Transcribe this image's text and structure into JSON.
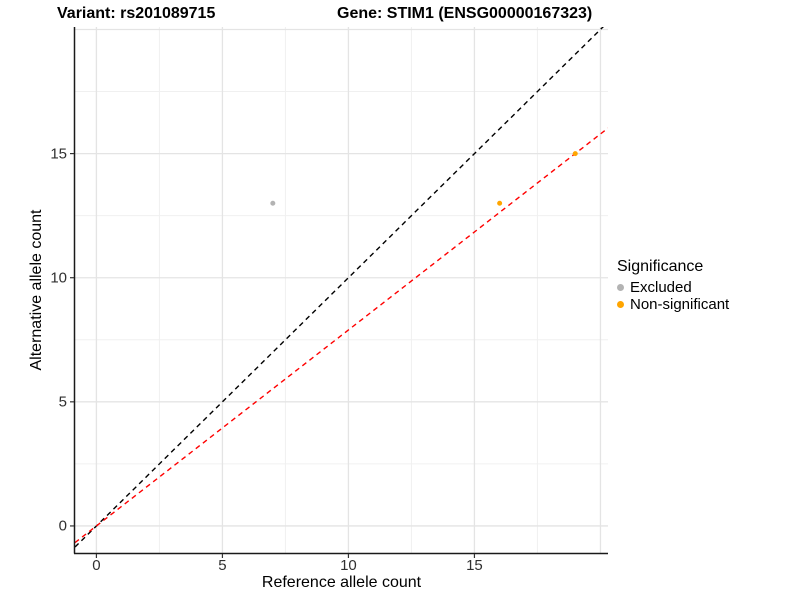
{
  "titles": {
    "variant": "Variant: rs201089715",
    "gene": "Gene: STIM1 (ENSG00000167323)"
  },
  "chart_data": {
    "type": "scatter",
    "xlabel": "Reference allele count",
    "ylabel": "Alternative allele count",
    "xlim": [
      -0.85,
      20.3
    ],
    "ylim": [
      -1.09,
      20.1
    ],
    "x_ticks": [
      0,
      5,
      10,
      15
    ],
    "y_ticks": [
      0,
      5,
      10,
      15
    ],
    "x_grid_major": [
      0,
      5,
      10,
      15,
      20
    ],
    "x_grid_minor": [
      2.5,
      7.5,
      12.5,
      17.5
    ],
    "y_grid_major": [
      0,
      5,
      10,
      15,
      20
    ],
    "y_grid_minor": [
      2.5,
      7.5,
      12.5,
      17.5
    ],
    "grid": true,
    "grid_major_color": "#e4e4e4",
    "grid_minor_color": "#f0f0f0",
    "axis_color": "#1a1a1a",
    "points": [
      {
        "x": 7,
        "y": 13,
        "series": "Excluded"
      },
      {
        "x": 16,
        "y": 13,
        "series": "Non-significant"
      },
      {
        "x": 19,
        "y": 15,
        "series": "Non-significant"
      }
    ],
    "series_colors": {
      "Excluded": "#b3b3b3",
      "Non-significant": "#ffa500"
    },
    "lines": [
      {
        "name": "identity-line",
        "slope": 1.0,
        "intercept": 0,
        "color": "#000000",
        "style": "dashed"
      },
      {
        "name": "expected-ratio-line",
        "slope": 0.7895,
        "intercept": 0,
        "color": "#ff0000",
        "style": "dashed"
      }
    ],
    "legend": {
      "title": "Significance",
      "position": "right",
      "items": [
        {
          "label": "Excluded",
          "color": "#b3b3b3"
        },
        {
          "label": "Non-significant",
          "color": "#ffa500"
        }
      ]
    }
  }
}
